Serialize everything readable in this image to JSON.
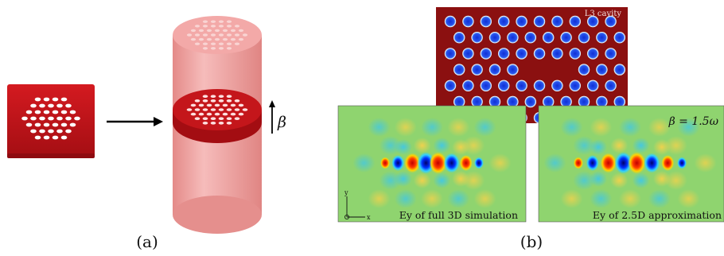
{
  "panel_a": {
    "caption": "(a)",
    "parameter_symbol": "β"
  },
  "panel_b": {
    "caption": "(b)",
    "cavity_label": "L3 cavity",
    "beta_annotation": "β = 1.5ω",
    "left_field_caption": "Ey of full 3D simulation",
    "right_field_caption": "Ey of 2.5D approximation",
    "axis_y": "y",
    "axis_x": "x"
  },
  "colors": {
    "slab": "#c0141a",
    "cylinder": "#f2a7a5",
    "cavity_bg": "#8b1010",
    "hole": "#1e3fd8",
    "field_bg": "#88d46c"
  }
}
